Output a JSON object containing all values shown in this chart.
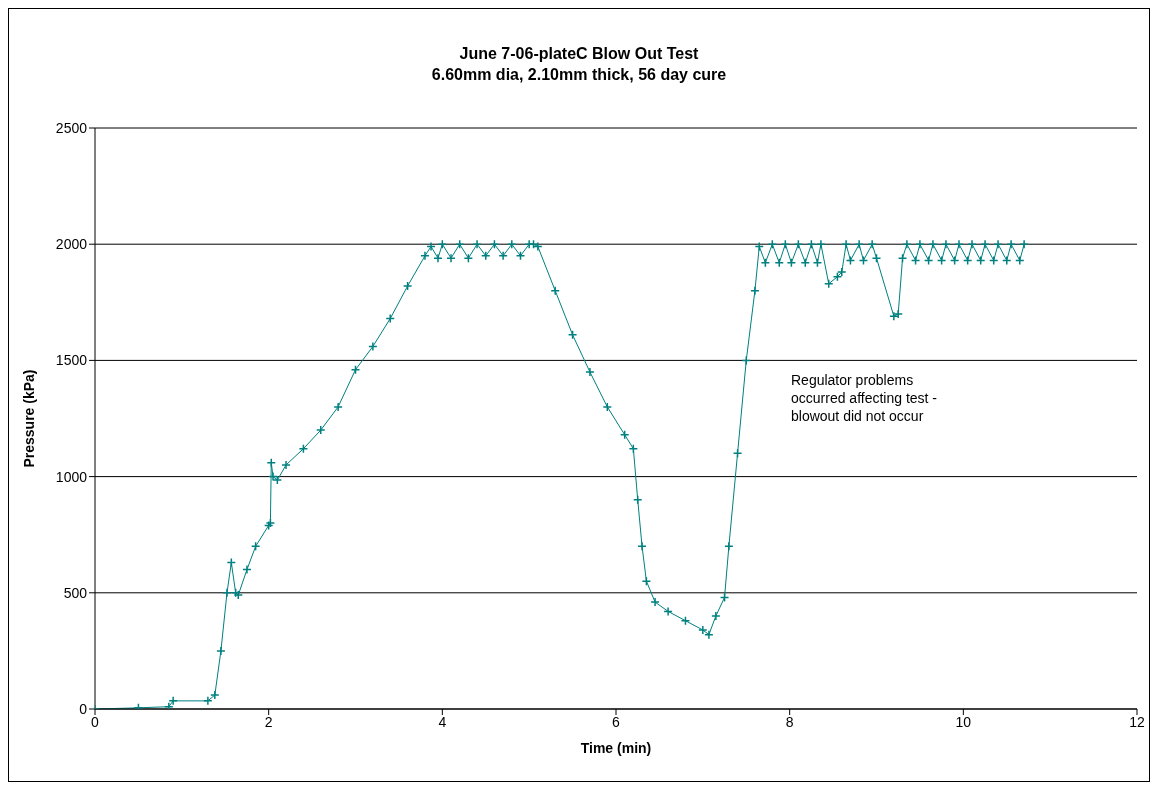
{
  "chart_data": {
    "type": "line",
    "title": "June 7-06-plateC Blow Out Test",
    "subtitle": "6.60mm dia, 2.10mm thick, 56 day cure",
    "xlabel": "Time (min)",
    "ylabel": "Pressure (kPa)",
    "annotations": [
      "Regulator problems occurred affecting test - blowout did not occur"
    ],
    "xlim": [
      0,
      12
    ],
    "xticks": [
      0,
      2,
      4,
      6,
      8,
      10,
      12
    ],
    "ylim": [
      0,
      2500
    ],
    "yticks": [
      0,
      500,
      1000,
      1500,
      2000,
      2500
    ],
    "grid": "y",
    "marker": "cross",
    "line_style": "solid",
    "series": [
      {
        "color": "#008080",
        "x": [
          0,
          0.5,
          0.85,
          0.9,
          1.3,
          1.38,
          1.45,
          1.52,
          1.57,
          1.62,
          1.65,
          1.75,
          1.85,
          2.0,
          2.02,
          2.03,
          2.05,
          2.1,
          2.2,
          2.4,
          2.6,
          2.8,
          3.0,
          3.2,
          3.4,
          3.6,
          3.8,
          3.87,
          3.95,
          4.0,
          4.1,
          4.2,
          4.3,
          4.4,
          4.5,
          4.6,
          4.7,
          4.8,
          4.9,
          5.0,
          5.05,
          5.1,
          5.3,
          5.5,
          5.7,
          5.9,
          6.1,
          6.2,
          6.25,
          6.3,
          6.35,
          6.45,
          6.6,
          6.8,
          7.0,
          7.07,
          7.15,
          7.25,
          7.3,
          7.4,
          7.5,
          7.6,
          7.65,
          7.72,
          7.8,
          7.88,
          7.95,
          8.02,
          8.1,
          8.18,
          8.25,
          8.32,
          8.36,
          8.45,
          8.55,
          8.6,
          8.65,
          8.7,
          8.8,
          8.85,
          8.95,
          9.0,
          9.2,
          9.25,
          9.3,
          9.35,
          9.45,
          9.5,
          9.6,
          9.65,
          9.75,
          9.8,
          9.9,
          9.95,
          10.05,
          10.1,
          10.2,
          10.25,
          10.35,
          10.4,
          10.5,
          10.55,
          10.65,
          10.7
        ],
        "values": [
          0,
          5,
          10,
          35,
          35,
          60,
          250,
          500,
          630,
          500,
          490,
          600,
          700,
          790,
          800,
          1060,
          1000,
          985,
          1050,
          1120,
          1200,
          1300,
          1460,
          1560,
          1680,
          1820,
          1950,
          1990,
          1940,
          2000,
          1940,
          2000,
          1940,
          2000,
          1950,
          2000,
          1950,
          2000,
          1950,
          2000,
          2000,
          1990,
          1800,
          1610,
          1450,
          1300,
          1180,
          1120,
          900,
          700,
          550,
          460,
          420,
          380,
          340,
          320,
          400,
          480,
          700,
          1100,
          1500,
          1800,
          1990,
          1920,
          2000,
          1920,
          2000,
          1920,
          2000,
          1920,
          2000,
          1920,
          2000,
          1830,
          1860,
          1880,
          2000,
          1930,
          2000,
          1930,
          2000,
          1940,
          1690,
          1700,
          1940,
          2000,
          1930,
          2000,
          1930,
          2000,
          1930,
          2000,
          1930,
          2000,
          1930,
          2000,
          1930,
          2000,
          1930,
          2000,
          1930,
          2000,
          1930,
          2000
        ]
      }
    ]
  }
}
